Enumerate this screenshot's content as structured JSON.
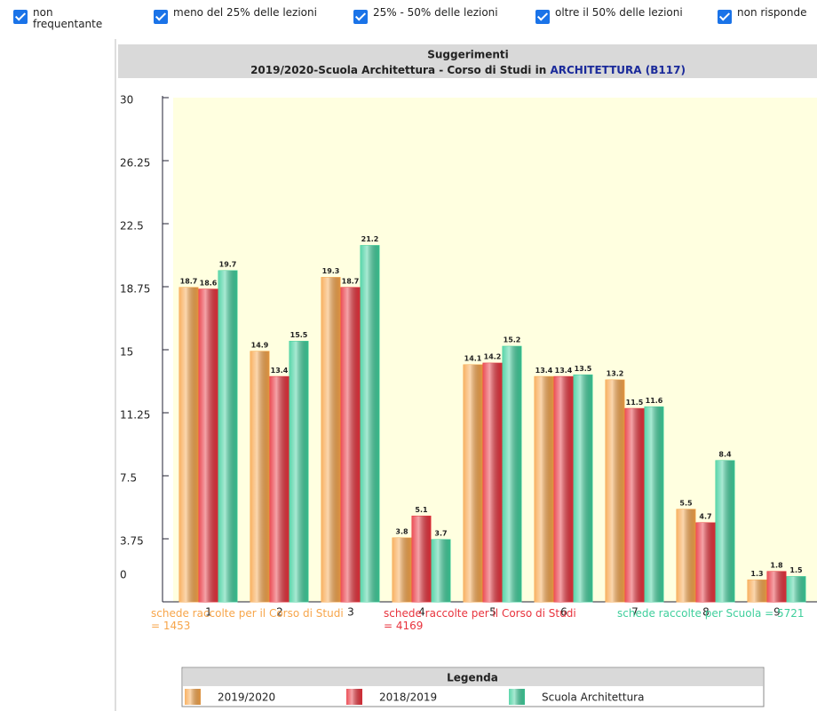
{
  "filters": [
    {
      "label": "non frequentante",
      "checked": true
    },
    {
      "label": "meno del 25% delle lezioni",
      "checked": true
    },
    {
      "label": "25% - 50% delle lezioni",
      "checked": true
    },
    {
      "label": "oltre il 50% delle lezioni",
      "checked": true
    },
    {
      "label": "non risponde",
      "checked": true
    }
  ],
  "chart_data": {
    "type": "bar",
    "title": "Suggerimenti",
    "subtitle": "2019/2020-Scuola Architettura - Corso di Studi in",
    "subtitle_link": "ARCHITETTURA (B117)",
    "categories": [
      "1",
      "2",
      "3",
      "4",
      "5",
      "6",
      "7",
      "8",
      "9"
    ],
    "series": [
      {
        "name": "2019/2020",
        "color": "#f7a54a",
        "values": [
          18.7,
          14.9,
          19.3,
          3.8,
          14.1,
          13.4,
          13.2,
          5.5,
          1.3
        ]
      },
      {
        "name": "2018/2019",
        "color": "#e8333d",
        "values": [
          18.6,
          13.4,
          18.7,
          5.1,
          14.2,
          13.4,
          11.5,
          4.7,
          1.8
        ]
      },
      {
        "name": "Scuola Architettura",
        "color": "#3fcf9c",
        "values": [
          19.7,
          15.5,
          21.2,
          3.7,
          15.2,
          13.5,
          11.6,
          8.4,
          1.5
        ]
      }
    ],
    "ylim": [
      0,
      30
    ],
    "yticks": [
      0,
      3.75,
      7.5,
      11.25,
      15,
      18.75,
      22.5,
      26.25,
      30
    ],
    "notes": [
      "schede raccolte per il Corso di Studi = 1453",
      "schede raccolte per il Corso di Studi = 4169",
      "schede raccolte per Scuola = 5721"
    ],
    "legend_title": "Legenda"
  }
}
